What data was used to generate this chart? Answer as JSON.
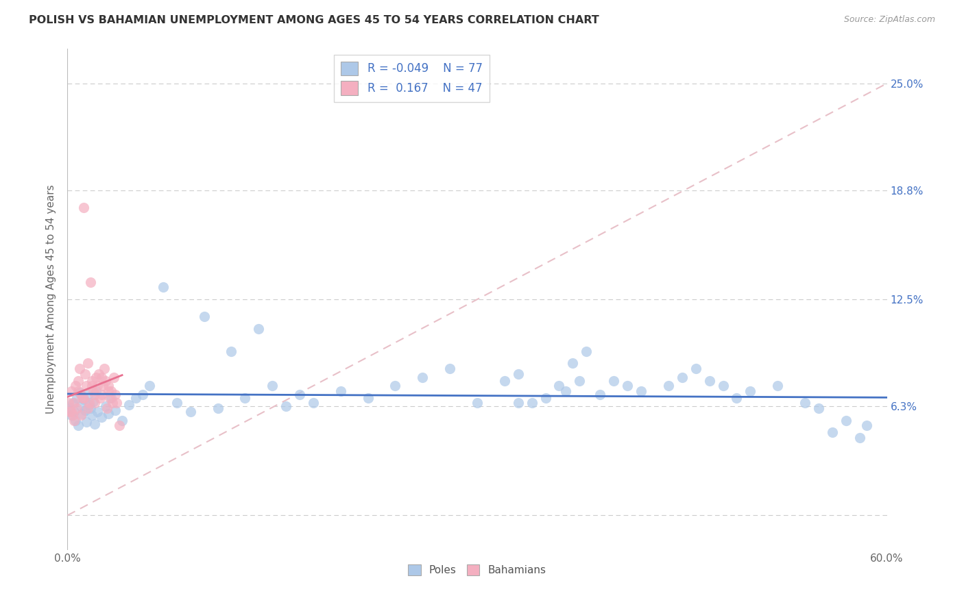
{
  "title": "POLISH VS BAHAMIAN UNEMPLOYMENT AMONG AGES 45 TO 54 YEARS CORRELATION CHART",
  "source": "Source: ZipAtlas.com",
  "xlim": [
    0.0,
    60.0
  ],
  "ylim": [
    -2.0,
    27.0
  ],
  "ylabel_vals": [
    0.0,
    6.3,
    12.5,
    18.8,
    25.0
  ],
  "ylabel_labels": [
    "",
    "6.3%",
    "12.5%",
    "18.8%",
    "25.0%"
  ],
  "xlabel_vals": [
    0.0,
    10.0,
    20.0,
    30.0,
    40.0,
    50.0,
    60.0
  ],
  "xlabel_labels": [
    "0.0%",
    "",
    "",
    "",
    "",
    "",
    "60.0%"
  ],
  "poles_color": "#adc8e8",
  "bahamians_color": "#f4afc0",
  "poles_line_color": "#4472c4",
  "bahamians_line_color": "#e87090",
  "diagonal_color": "#e8c0c8",
  "poles_R": -0.049,
  "poles_N": 77,
  "bahamians_R": 0.167,
  "bahamians_N": 47,
  "legend_label_poles": "Poles",
  "legend_label_bahamians": "Bahamians",
  "poles_x": [
    0.2,
    0.3,
    0.4,
    0.5,
    0.6,
    0.7,
    0.8,
    0.9,
    1.0,
    1.1,
    1.2,
    1.3,
    1.4,
    1.5,
    1.6,
    1.7,
    1.8,
    1.9,
    2.0,
    2.1,
    2.2,
    2.5,
    2.8,
    3.0,
    3.2,
    3.5,
    4.0,
    4.5,
    5.0,
    5.5,
    6.0,
    7.0,
    8.0,
    9.0,
    10.0,
    11.0,
    12.0,
    13.0,
    14.0,
    15.0,
    16.0,
    17.0,
    18.0,
    20.0,
    22.0,
    24.0,
    26.0,
    28.0,
    30.0,
    32.0,
    33.0,
    34.0,
    36.0,
    37.0,
    38.0,
    40.0,
    42.0,
    44.0,
    45.0,
    46.0,
    47.0,
    48.0,
    49.0,
    50.0,
    52.0,
    54.0,
    55.0,
    56.0,
    57.0,
    58.0,
    58.5,
    33.0,
    35.0,
    36.5,
    37.5,
    39.0,
    41.0
  ],
  "poles_y": [
    6.2,
    5.8,
    6.5,
    6.0,
    5.5,
    6.8,
    5.2,
    7.1,
    6.3,
    5.9,
    6.7,
    6.1,
    5.4,
    7.0,
    6.4,
    6.2,
    5.8,
    6.6,
    5.3,
    7.2,
    6.0,
    5.7,
    6.3,
    5.9,
    6.8,
    6.1,
    5.5,
    6.4,
    6.8,
    7.0,
    7.5,
    13.2,
    6.5,
    6.0,
    11.5,
    6.2,
    9.5,
    6.8,
    10.8,
    7.5,
    6.3,
    7.0,
    6.5,
    7.2,
    6.8,
    7.5,
    8.0,
    8.5,
    6.5,
    7.8,
    8.2,
    6.5,
    7.5,
    8.8,
    9.5,
    7.8,
    7.2,
    7.5,
    8.0,
    8.5,
    7.8,
    7.5,
    6.8,
    7.2,
    7.5,
    6.5,
    6.2,
    4.8,
    5.5,
    4.5,
    5.2,
    6.5,
    6.8,
    7.2,
    7.8,
    7.0,
    7.5
  ],
  "bahamians_x": [
    0.1,
    0.2,
    0.3,
    0.4,
    0.5,
    0.6,
    0.7,
    0.8,
    0.9,
    1.0,
    1.1,
    1.2,
    1.3,
    1.4,
    1.5,
    1.6,
    1.7,
    1.8,
    1.9,
    2.0,
    2.1,
    2.2,
    2.3,
    2.4,
    2.5,
    2.6,
    2.7,
    2.8,
    2.9,
    3.0,
    3.1,
    3.2,
    3.3,
    3.4,
    3.5,
    3.6,
    0.3,
    0.8,
    1.2,
    1.8,
    2.5,
    3.0,
    0.5,
    1.0,
    1.5,
    2.0,
    3.8
  ],
  "bahamians_y": [
    6.5,
    6.0,
    7.2,
    5.8,
    6.5,
    7.5,
    6.2,
    7.8,
    8.5,
    7.0,
    6.8,
    17.8,
    8.2,
    7.5,
    8.8,
    6.5,
    13.5,
    7.8,
    7.2,
    6.5,
    8.0,
    7.5,
    8.2,
    6.8,
    7.0,
    7.5,
    8.5,
    7.8,
    6.2,
    7.5,
    6.8,
    7.2,
    6.5,
    8.0,
    7.0,
    6.5,
    6.0,
    7.2,
    6.8,
    7.5,
    8.0,
    7.2,
    5.5,
    5.8,
    6.2,
    7.0,
    5.2
  ]
}
